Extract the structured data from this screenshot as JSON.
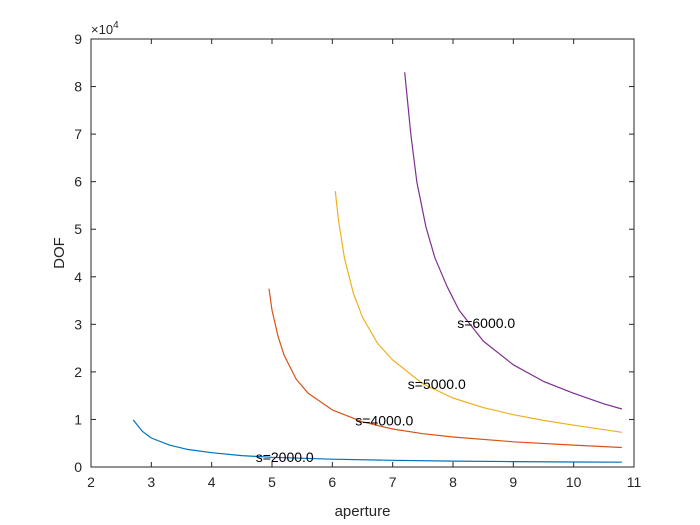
{
  "chart_data": {
    "type": "line",
    "title": "",
    "xlabel": "aperture",
    "ylabel": "DOF",
    "xlim": [
      2,
      11
    ],
    "ylim": [
      0,
      90000
    ],
    "y_exponent": {
      "base": "×10",
      "power": "4"
    },
    "xticks": [
      2,
      3,
      4,
      5,
      6,
      7,
      8,
      9,
      10,
      11
    ],
    "xtick_labels": [
      "2",
      "3",
      "4",
      "5",
      "6",
      "7",
      "8",
      "9",
      "10",
      "11"
    ],
    "yticks": [
      0,
      10000,
      20000,
      30000,
      40000,
      50000,
      60000,
      70000,
      80000,
      90000
    ],
    "ytick_labels": [
      "0",
      "1",
      "2",
      "3",
      "4",
      "5",
      "6",
      "7",
      "8",
      "9"
    ],
    "grid": false,
    "series": [
      {
        "color": "#0072BD",
        "annotation": {
          "text": "s=2000.0",
          "x": 4.73,
          "y": 2100
        },
        "points": [
          [
            2.7,
            9900
          ],
          [
            2.85,
            7500
          ],
          [
            3.0,
            6100
          ],
          [
            3.3,
            4600
          ],
          [
            3.6,
            3700
          ],
          [
            4.0,
            3000
          ],
          [
            4.5,
            2400
          ],
          [
            5.0,
            2050
          ],
          [
            6.0,
            1650
          ],
          [
            7.0,
            1400
          ],
          [
            8.0,
            1250
          ],
          [
            9.0,
            1130
          ],
          [
            10.0,
            1050
          ],
          [
            10.8,
            1000
          ]
        ]
      },
      {
        "color": "#D95319",
        "annotation": {
          "text": "s=4000.0",
          "x": 6.38,
          "y": 9800
        },
        "points": [
          [
            4.95,
            37500
          ],
          [
            5.0,
            33000
          ],
          [
            5.1,
            27500
          ],
          [
            5.2,
            23500
          ],
          [
            5.4,
            18500
          ],
          [
            5.6,
            15500
          ],
          [
            6.0,
            12000
          ],
          [
            6.5,
            9500
          ],
          [
            7.0,
            8000
          ],
          [
            7.5,
            7000
          ],
          [
            8.0,
            6300
          ],
          [
            9.0,
            5300
          ],
          [
            10.0,
            4600
          ],
          [
            10.8,
            4100
          ]
        ]
      },
      {
        "color": "#EDB120",
        "annotation": {
          "text": "s=5000.0",
          "x": 7.25,
          "y": 17500
        },
        "points": [
          [
            6.05,
            58000
          ],
          [
            6.1,
            52000
          ],
          [
            6.2,
            44000
          ],
          [
            6.35,
            36500
          ],
          [
            6.5,
            31500
          ],
          [
            6.75,
            26000
          ],
          [
            7.0,
            22500
          ],
          [
            7.5,
            17500
          ],
          [
            8.0,
            14500
          ],
          [
            8.5,
            12500
          ],
          [
            9.0,
            11000
          ],
          [
            9.5,
            9800
          ],
          [
            10.0,
            8800
          ],
          [
            10.8,
            7300
          ]
        ]
      },
      {
        "color": "#7E2F8E",
        "annotation": {
          "text": "s=6000.0",
          "x": 8.07,
          "y": 30300
        },
        "points": [
          [
            7.2,
            83000
          ],
          [
            7.3,
            70000
          ],
          [
            7.4,
            60000
          ],
          [
            7.55,
            50500
          ],
          [
            7.7,
            44000
          ],
          [
            7.9,
            38000
          ],
          [
            8.1,
            33000
          ],
          [
            8.5,
            26500
          ],
          [
            9.0,
            21500
          ],
          [
            9.5,
            18000
          ],
          [
            10.0,
            15500
          ],
          [
            10.5,
            13300
          ],
          [
            10.8,
            12200
          ]
        ]
      }
    ]
  }
}
